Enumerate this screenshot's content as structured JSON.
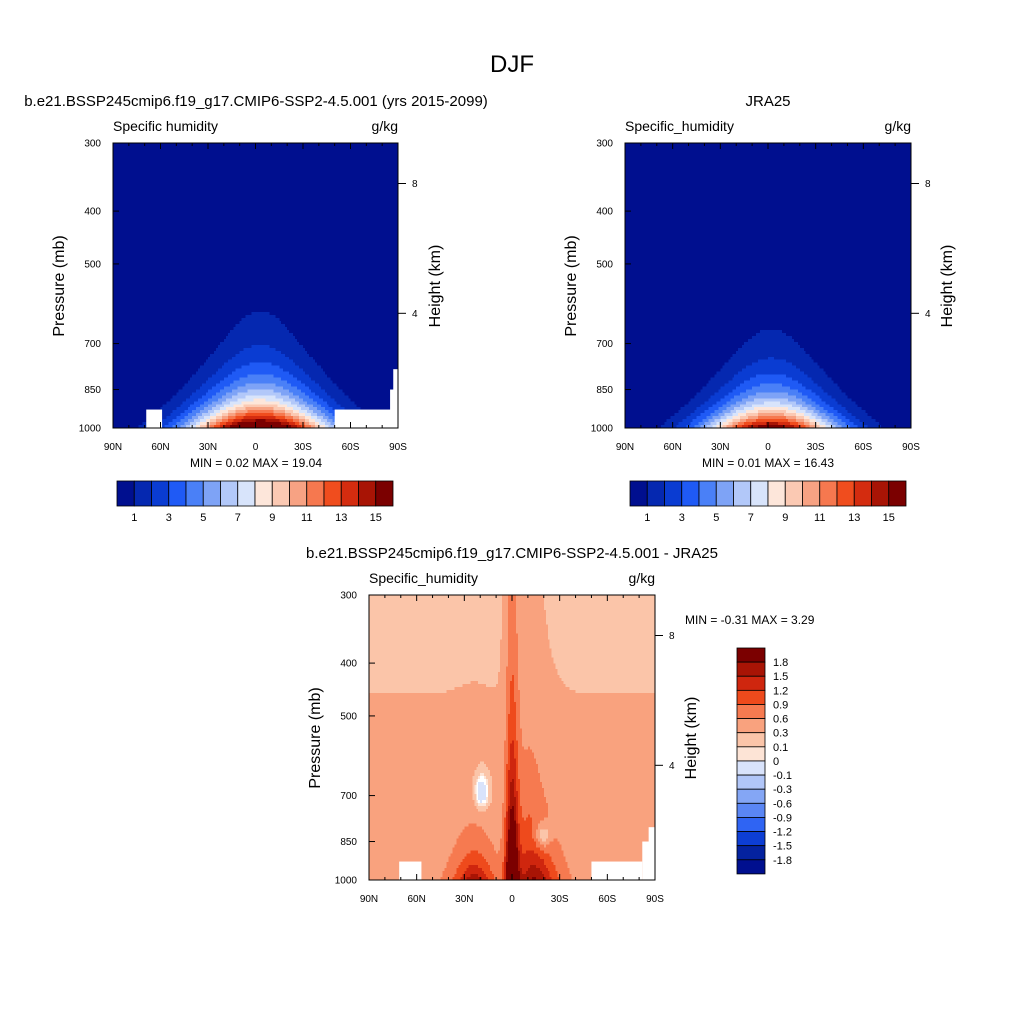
{
  "figure_title": "DJF",
  "colors": {
    "sequential": [
      "#000f8f",
      "#0528b0",
      "#0a3cd2",
      "#1f5af5",
      "#4a80f7",
      "#7ea3f6",
      "#b2c8f9",
      "#d8e4fb",
      "#fde6da",
      "#fbc9b3",
      "#f7a283",
      "#f6784f",
      "#f04d1e",
      "#d42c0f",
      "#a81405",
      "#7b0000"
    ],
    "difference": [
      "#7b0000",
      "#a81405",
      "#cf260e",
      "#ee4a1c",
      "#f67a50",
      "#f9a27e",
      "#fbc5a9",
      "#fde4d6",
      "#ffffff",
      "#d9e3fb",
      "#b1c6f8",
      "#84a6f5",
      "#5a86f4",
      "#2f64f3",
      "#0d3ed4",
      "#04229f",
      "#000f8f"
    ]
  },
  "chart_data": [
    {
      "type": "heatmap",
      "title": "b.e21.BSSP245cmip6.f19_g17.CMIP6-SSP2-4.5.001 (yrs 2015-2099)",
      "variable": "Specific humidity",
      "units": "g/kg",
      "ylabel": "Pressure (mb)",
      "ylabel_right": "Height (km)",
      "x_ticks": [
        "90N",
        "60N",
        "30N",
        "0",
        "30S",
        "60S",
        "90S"
      ],
      "x_range": [
        90,
        -90
      ],
      "y_ticks": [
        "300",
        "400",
        "500",
        "700",
        "850",
        "1000"
      ],
      "y_range": [
        1000,
        300
      ],
      "y_scale": "log",
      "height_ticks": [
        "8",
        "4"
      ],
      "min_label": "MIN =   0.02  MAX =  19.04",
      "colorbar_levels": [
        1,
        2,
        3,
        4,
        5,
        6,
        7,
        8,
        9,
        10,
        11,
        12,
        13,
        14,
        15
      ],
      "colorbar_labels": [
        "1",
        "3",
        "5",
        "7",
        "9",
        "11",
        "13",
        "15"
      ],
      "field": {
        "peak": 19.04,
        "center_lat": -3,
        "halfwidth_at_surface": 45,
        "scale_height_mb": 130
      }
    },
    {
      "type": "heatmap",
      "title": "JRA25",
      "variable": "Specific_humidity",
      "units": "g/kg",
      "ylabel": "Pressure (mb)",
      "ylabel_right": "Height (km)",
      "x_ticks": [
        "90N",
        "60N",
        "30N",
        "0",
        "30S",
        "60S",
        "90S"
      ],
      "x_range": [
        90,
        -90
      ],
      "y_ticks": [
        "300",
        "400",
        "500",
        "700",
        "850",
        "1000"
      ],
      "y_range": [
        1000,
        300
      ],
      "y_scale": "log",
      "height_ticks": [
        "8",
        "4"
      ],
      "min_label": "MIN =   0.01  MAX =  16.43",
      "colorbar_levels": [
        1,
        2,
        3,
        4,
        5,
        6,
        7,
        8,
        9,
        10,
        11,
        12,
        13,
        14,
        15
      ],
      "colorbar_labels": [
        "1",
        "3",
        "5",
        "7",
        "9",
        "11",
        "13",
        "15"
      ],
      "field": {
        "peak": 16.43,
        "center_lat": -2,
        "halfwidth_at_surface": 42,
        "scale_height_mb": 120
      }
    },
    {
      "type": "heatmap",
      "title": "b.e21.BSSP245cmip6.f19_g17.CMIP6-SSP2-4.5.001 - JRA25",
      "variable": "Specific_humidity",
      "units": "g/kg",
      "ylabel": "Pressure (mb)",
      "ylabel_right": "Height (km)",
      "x_ticks": [
        "90N",
        "60N",
        "30N",
        "0",
        "30S",
        "60S",
        "90S"
      ],
      "x_range": [
        90,
        -90
      ],
      "y_ticks": [
        "300",
        "400",
        "500",
        "700",
        "850",
        "1000"
      ],
      "y_range": [
        1000,
        300
      ],
      "y_scale": "log",
      "height_ticks": [
        "8",
        "4"
      ],
      "min_label": "MIN =  -0.31  MAX =    3.29",
      "colorbar_levels": [
        1.8,
        1.5,
        1.2,
        0.9,
        0.6,
        0.3,
        0.1,
        0,
        -0.1,
        -0.3,
        -0.6,
        -0.9,
        -1.2,
        -1.5,
        -1.8
      ],
      "colorbar_labels": [
        "1.8",
        "1.5",
        "1.2",
        "0.9",
        "0.6",
        "0.3",
        "0.1",
        "0",
        "-0.1",
        "-0.3",
        "-0.6",
        "-0.9",
        "-1.2",
        "-1.5",
        "-1.8"
      ]
    }
  ]
}
